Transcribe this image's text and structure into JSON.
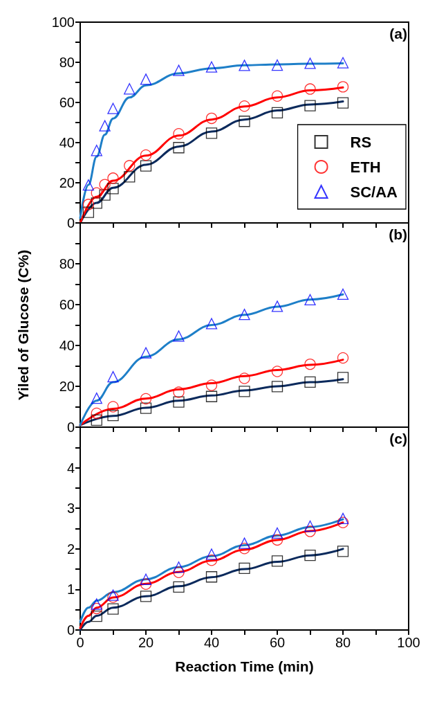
{
  "chart_data": [
    {
      "type": "scatter",
      "annotations": [
        "(a)"
      ],
      "xlim": [
        0,
        100
      ],
      "xticks": [
        0,
        {
          "value": 10,
          "label": null
        },
        20,
        {
          "value": 30,
          "label": null
        },
        40,
        {
          "value": 50,
          "label": null
        },
        60,
        {
          "value": 70,
          "label": null
        },
        80,
        {
          "value": 90,
          "label": null
        },
        100
      ],
      "ylim": [
        0,
        100
      ],
      "yticks": [
        0,
        {
          "value": 10,
          "label": null
        },
        20,
        {
          "value": 30,
          "label": null
        },
        40,
        {
          "value": 50,
          "label": null
        },
        60,
        {
          "value": 70,
          "label": null
        },
        80,
        {
          "value": 90,
          "label": null
        },
        100
      ],
      "tick_labels": "y",
      "legend": "right",
      "series": [
        {
          "name": "RS",
          "color": "#000000",
          "marker": "square",
          "x": [
            2.5,
            5,
            7.5,
            10,
            15,
            20,
            30,
            40,
            50,
            60,
            70,
            80
          ],
          "values": [
            5.3,
            9.9,
            13.9,
            17.1,
            23.0,
            28.4,
            37.5,
            44.7,
            50.6,
            54.9,
            58.4,
            59.8
          ]
        },
        {
          "name": "ETH",
          "color": "#ff0000",
          "marker": "circle",
          "x": [
            2.5,
            5,
            7.5,
            10,
            15,
            20,
            30,
            40,
            50,
            60,
            70,
            80
          ],
          "values": [
            9.2,
            14.9,
            19.1,
            22.3,
            28.5,
            33.8,
            44.4,
            52.1,
            58.2,
            63.2,
            66.7,
            67.8
          ]
        },
        {
          "name": "SC/AA",
          "color": "#0000ff",
          "marker": "triangle",
          "x": [
            2.5,
            5,
            7.5,
            10,
            15,
            20,
            30,
            40,
            50,
            60,
            70,
            80
          ],
          "values": [
            18.9,
            36.1,
            48.4,
            57.0,
            66.8,
            71.6,
            76.0,
            77.7,
            78.5,
            78.6,
            79.5,
            79.8
          ]
        },
        {
          "type": "line",
          "color": "#0b2a5c",
          "marker": "none",
          "x": [
            0,
            5,
            10,
            20,
            30,
            40,
            50,
            60,
            70,
            80
          ],
          "values": [
            0,
            10,
            17.5,
            29,
            38,
            45.5,
            51.5,
            56,
            59,
            60.5
          ]
        },
        {
          "type": "line",
          "color": "#ff0000",
          "marker": "none",
          "x": [
            0,
            5,
            10,
            20,
            30,
            40,
            50,
            60,
            70,
            80
          ],
          "values": [
            0,
            13,
            21,
            33.5,
            43.5,
            51.5,
            58,
            62.5,
            66,
            67.5
          ]
        },
        {
          "type": "line",
          "color": "#1e7fc8",
          "marker": "none",
          "x": [
            0,
            2.5,
            5,
            7.5,
            10,
            15,
            20,
            30,
            40,
            50,
            60,
            70,
            80
          ],
          "values": [
            2.5,
            19,
            33,
            44,
            52,
            62.5,
            68.5,
            74.5,
            77,
            78.5,
            79,
            79.3,
            79.5
          ]
        }
      ]
    },
    {
      "type": "scatter",
      "annotations": [
        "(b)"
      ],
      "ylabel": "Yiled of Glucose (C%)",
      "xlim": [
        0,
        100
      ],
      "xticks": [
        0,
        {
          "value": 10,
          "label": null
        },
        20,
        {
          "value": 30,
          "label": null
        },
        40,
        {
          "value": 50,
          "label": null
        },
        60,
        {
          "value": 70,
          "label": null
        },
        80,
        {
          "value": 90,
          "label": null
        },
        100
      ],
      "ylim": [
        0,
        100
      ],
      "yticks": [
        0,
        {
          "value": 10,
          "label": null
        },
        20,
        {
          "value": 30,
          "label": null
        },
        40,
        {
          "value": 50,
          "label": null
        },
        60,
        {
          "value": 70,
          "label": null
        },
        80,
        {
          "value": 90,
          "label": null
        },
        {
          "value": 100,
          "label": null
        }
      ],
      "tick_labels": "y",
      "series": [
        {
          "color": "#000000",
          "marker": "square",
          "x": [
            5,
            10,
            20,
            30,
            40,
            50,
            60,
            70,
            80
          ],
          "values": [
            3.4,
            5.7,
            9.3,
            12.3,
            15.0,
            17.5,
            19.9,
            22.1,
            24.3
          ]
        },
        {
          "color": "#ff0000",
          "marker": "circle",
          "x": [
            5,
            10,
            20,
            30,
            40,
            50,
            60,
            70,
            80
          ],
          "values": [
            6.8,
            10.0,
            13.9,
            17.1,
            20.5,
            23.9,
            27.3,
            30.8,
            33.9
          ]
        },
        {
          "color": "#0000ff",
          "marker": "triangle",
          "x": [
            5,
            10,
            20,
            30,
            40,
            50,
            60,
            70,
            80
          ],
          "values": [
            14.2,
            24.7,
            36.4,
            44.6,
            50.7,
            55.2,
            59.2,
            62.4,
            65.1
          ]
        },
        {
          "type": "line",
          "color": "#0b2a5c",
          "marker": "none",
          "x": [
            0,
            10,
            20,
            30,
            40,
            50,
            60,
            70,
            80
          ],
          "values": [
            1,
            5.5,
            9.5,
            13,
            15.5,
            18,
            20,
            22,
            23.5
          ]
        },
        {
          "type": "line",
          "color": "#ff0000",
          "marker": "none",
          "x": [
            0,
            10,
            20,
            30,
            40,
            50,
            60,
            70,
            80
          ],
          "values": [
            1,
            9,
            14,
            18.5,
            21.5,
            25,
            28,
            30.5,
            33
          ]
        },
        {
          "type": "line",
          "color": "#1e7fc8",
          "marker": "none",
          "x": [
            0,
            5,
            10,
            20,
            30,
            40,
            50,
            60,
            70,
            80
          ],
          "values": [
            1,
            13,
            22,
            34.5,
            43,
            50,
            55,
            59,
            62.5,
            65
          ]
        }
      ]
    },
    {
      "type": "scatter",
      "annotations": [
        "(c)"
      ],
      "xlabel": "Reaction Time (min)",
      "xlim": [
        0,
        100
      ],
      "xticks": [
        0,
        {
          "value": 10,
          "label": null
        },
        20,
        {
          "value": 30,
          "label": null
        },
        40,
        {
          "value": 50,
          "label": null
        },
        60,
        {
          "value": 70,
          "label": null
        },
        80,
        {
          "value": 90,
          "label": null
        },
        100
      ],
      "ylim": [
        0,
        5
      ],
      "yticks": [
        0,
        {
          "value": 0.5,
          "label": null
        },
        1,
        {
          "value": 1.5,
          "label": null
        },
        2,
        {
          "value": 2.5,
          "label": null
        },
        3,
        {
          "value": 3.5,
          "label": null
        },
        4,
        {
          "value": 4.5,
          "label": null
        },
        {
          "value": 5,
          "label": null
        }
      ],
      "series": [
        {
          "color": "#000000",
          "marker": "square",
          "x": [
            5,
            10,
            20,
            30,
            40,
            50,
            60,
            70,
            80
          ],
          "values": [
            0.34,
            0.52,
            0.83,
            1.06,
            1.31,
            1.52,
            1.7,
            1.84,
            1.94
          ]
        },
        {
          "color": "#ff0000",
          "marker": "circle",
          "x": [
            5,
            10,
            20,
            30,
            40,
            50,
            60,
            70,
            80
          ],
          "values": [
            0.53,
            0.81,
            1.13,
            1.42,
            1.72,
            2.01,
            2.22,
            2.43,
            2.65
          ]
        },
        {
          "color": "#0000ff",
          "marker": "triangle",
          "x": [
            5,
            10,
            20,
            30,
            40,
            50,
            60,
            70,
            80
          ],
          "values": [
            0.64,
            0.86,
            1.25,
            1.55,
            1.87,
            2.14,
            2.39,
            2.56,
            2.75
          ]
        },
        {
          "type": "line",
          "color": "#0b2a5c",
          "marker": "none",
          "x": [
            0,
            2.5,
            5,
            10,
            20,
            30,
            40,
            50,
            60,
            70,
            80
          ],
          "values": [
            0,
            0.2,
            0.35,
            0.55,
            0.83,
            1.08,
            1.3,
            1.5,
            1.68,
            1.84,
            2.0
          ]
        },
        {
          "type": "line",
          "color": "#ff0000",
          "marker": "none",
          "x": [
            0,
            2.5,
            5,
            10,
            20,
            30,
            40,
            50,
            60,
            70,
            80
          ],
          "values": [
            0.05,
            0.35,
            0.55,
            0.8,
            1.14,
            1.43,
            1.71,
            1.98,
            2.22,
            2.44,
            2.65
          ]
        },
        {
          "type": "line",
          "color": "#1e7fc8",
          "marker": "none",
          "x": [
            0,
            2.5,
            5,
            10,
            20,
            30,
            40,
            50,
            60,
            70,
            80
          ],
          "values": [
            0.2,
            0.55,
            0.72,
            0.93,
            1.25,
            1.55,
            1.82,
            2.09,
            2.33,
            2.54,
            2.73
          ]
        }
      ]
    }
  ]
}
